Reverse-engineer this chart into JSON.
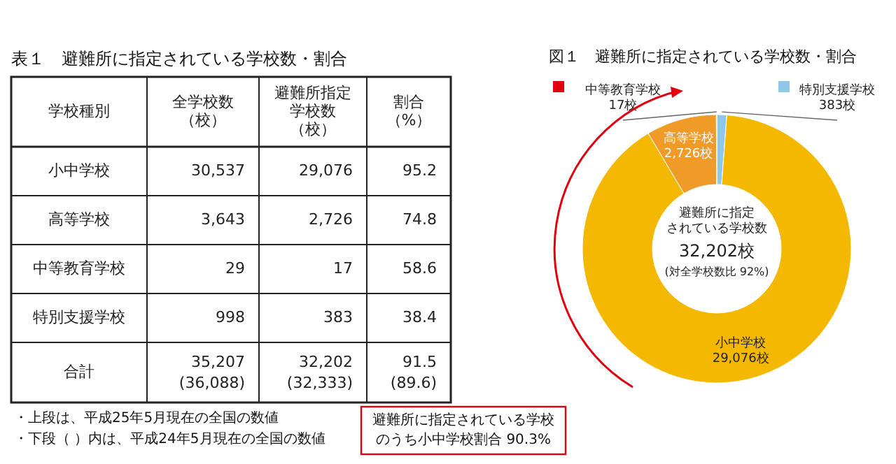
{
  "chart_data": [
    {
      "type": "other",
      "title": "表１　避難所に指定されている学校数・割合",
      "legend_title": "学校種別",
      "categories": [
        "小中学校",
        "高等学校",
        "中等教育学校",
        "特別支援学校",
        "合計"
      ],
      "series": [
        {
          "name": "全学校数（校）",
          "values": [
            30537,
            3643,
            29,
            998,
            35207
          ],
          "value_labels": [
            "30,537",
            "3,643",
            "29",
            "998",
            "35,207"
          ]
        },
        {
          "name": "避難所指定学校数（校）",
          "values": [
            29076,
            2726,
            17,
            383,
            32202
          ],
          "value_labels": [
            "29,076",
            "2,726",
            "17",
            "383",
            "32,202"
          ]
        },
        {
          "name": "割合（%）",
          "values": [
            95.2,
            74.8,
            58.6,
            38.4,
            91.5
          ]
        }
      ],
      "data_labels": true,
      "annotations": [
        "・上段は、平成25年5月現在の全国の数値",
        "・下段（ ）内は、平成24年5月現在の全国の数値",
        "(36,088)",
        "(32,333)",
        "(89.6)"
      ]
    },
    {
      "type": "donut",
      "title": "図１　避難所に指定されている学校数・割合",
      "categories": [
        "特別支援学校",
        "小中学校",
        "高等学校",
        "中等教育学校"
      ],
      "values": [
        383,
        29076,
        2726,
        17
      ],
      "colors": [
        "#8ec8e8",
        "#f5b800",
        "#f09a28",
        "#e00010"
      ],
      "value_labels": [
        "383校",
        "29,076校",
        "2,726校",
        "17校"
      ],
      "legend": "top",
      "annotations": [
        "避難所に指定されている学校数",
        "32,202校",
        "(対全学校数比 92%)",
        "避難所に指定されている学校のうち小中学校割合 90.3%"
      ]
    }
  ]
}
